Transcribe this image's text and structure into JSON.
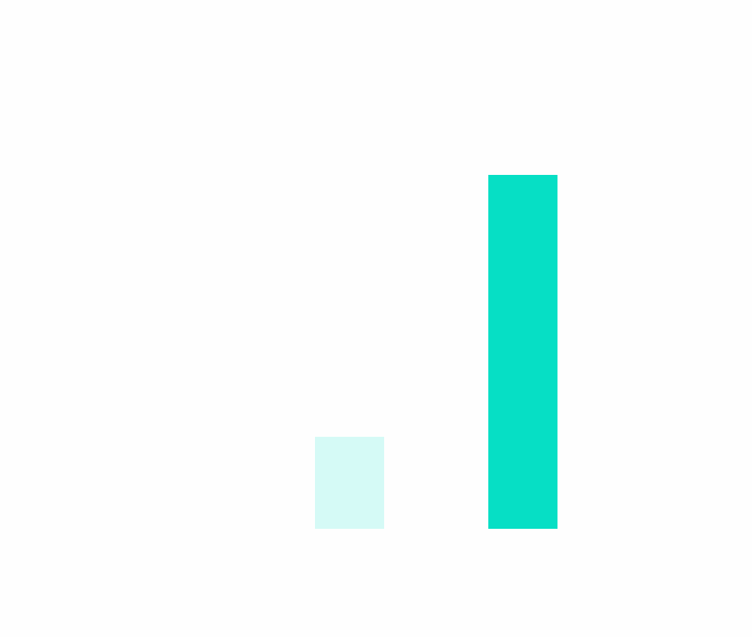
{
  "chart_data": {
    "type": "bar",
    "title": "",
    "xlabel": "",
    "ylabel": "",
    "categories": [
      "",
      ""
    ],
    "values": [
      26,
      100
    ],
    "colors": [
      "#d5faf6",
      "#06dfc5"
    ],
    "ylim": [
      0,
      100
    ],
    "grid": false,
    "axes_visible": false,
    "legend": "none"
  }
}
